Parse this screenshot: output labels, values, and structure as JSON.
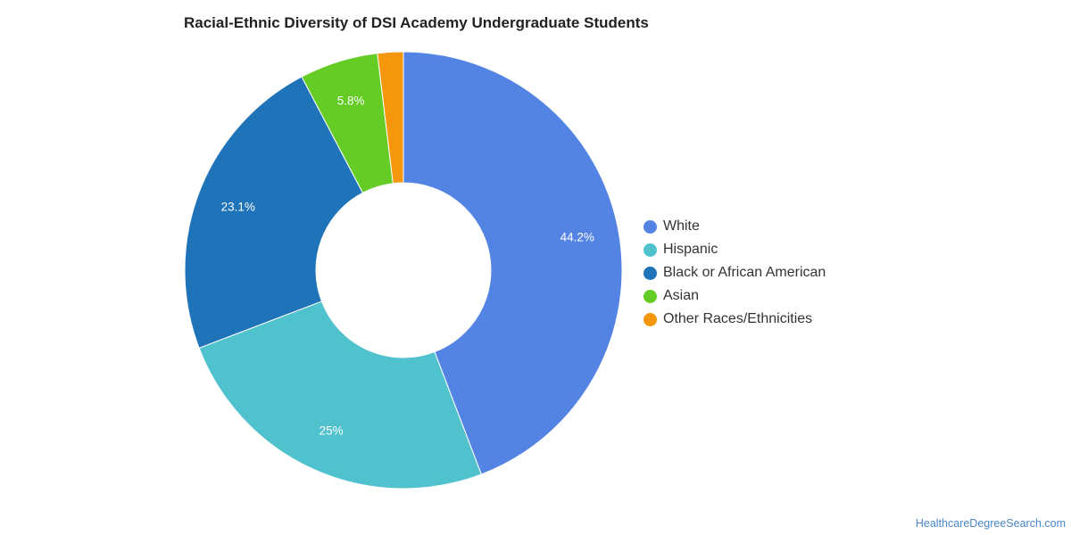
{
  "chart_data": {
    "type": "pie",
    "title": "Racial-Ethnic Diversity of DSI Academy Undergraduate Students",
    "donut": true,
    "legend_position": "right",
    "slices": [
      {
        "name": "White",
        "value": 44.2,
        "label": "44.2%",
        "color": "#5484e3"
      },
      {
        "name": "Hispanic",
        "value": 25.0,
        "label": "25%",
        "color": "#50c2ce"
      },
      {
        "name": "Black or African American",
        "value": 23.1,
        "label": "23.1%",
        "color": "#1f73b9"
      },
      {
        "name": "Asian",
        "value": 5.8,
        "label": "5.8%",
        "color": "#64cc24"
      },
      {
        "name": "Other Races/Ethnicities",
        "value": 1.9,
        "label": "",
        "color": "#f5970c"
      }
    ]
  },
  "source": "HealthcareDegreeSearch.com"
}
